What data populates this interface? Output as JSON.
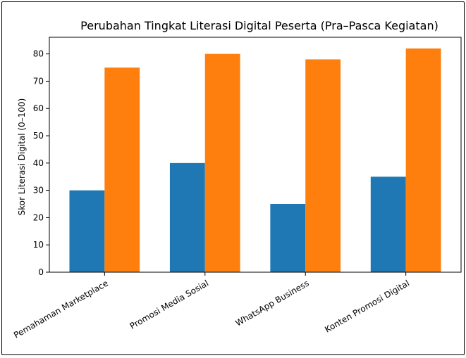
{
  "chart_data": {
    "type": "bar",
    "title": "Perubahan Tingkat Literasi Digital Peserta (Pra–Pasca Kegiatan)",
    "xlabel": "",
    "ylabel": "Skor Literasi Digital (0–100)",
    "categories": [
      "Pemahaman Marketplace",
      "Promosi Media Sosial",
      "WhatsApp Business",
      "Konten Promosi Digital"
    ],
    "series": [
      {
        "values": [
          30,
          40,
          25,
          35
        ],
        "color": "#1f77b4"
      },
      {
        "values": [
          75,
          80,
          78,
          82
        ],
        "color": "#ff7f0e"
      }
    ],
    "ylim": [
      0,
      86.1
    ],
    "yticks": [
      0,
      10,
      20,
      30,
      40,
      50,
      60,
      70,
      80
    ],
    "grid": false,
    "legend": "none"
  }
}
